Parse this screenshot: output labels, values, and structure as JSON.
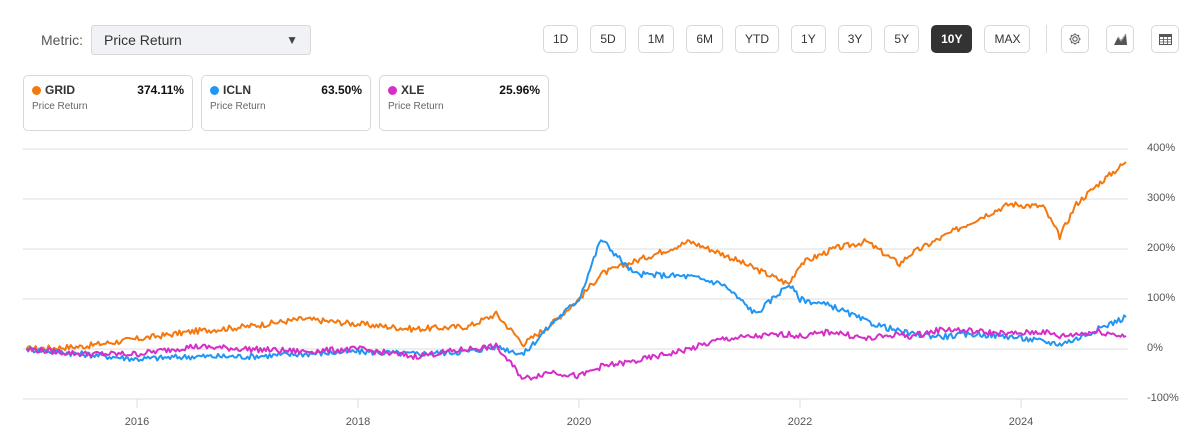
{
  "controls": {
    "metric_label": "Metric:",
    "metric_value": "Price Return",
    "ranges": [
      "1D",
      "5D",
      "1M",
      "6M",
      "YTD",
      "1Y",
      "3Y",
      "5Y",
      "10Y",
      "MAX"
    ],
    "active_range": "10Y",
    "icons": [
      "gear-icon",
      "chart-type-icon",
      "table-icon"
    ]
  },
  "cards": [
    {
      "symbol": "GRID",
      "value": "374.11%",
      "label": "Price Return",
      "color": "#f5780f"
    },
    {
      "symbol": "ICLN",
      "value": "63.50%",
      "label": "Price Return",
      "color": "#2196f3"
    },
    {
      "symbol": "XLE",
      "value": "25.96%",
      "label": "Price Return",
      "color": "#d42fc8"
    }
  ],
  "chart_data": {
    "type": "line",
    "title": "",
    "xlabel": "",
    "ylabel": "Price Return",
    "ylim": [
      -100,
      400
    ],
    "yticks": [
      "400%",
      "300%",
      "200%",
      "100%",
      "0%",
      "-100%"
    ],
    "xticks": [
      "2016",
      "2018",
      "2020",
      "2022",
      "2024"
    ],
    "grid": true,
    "legend_position": "top (cards)",
    "x": [
      2015.0,
      2015.5,
      2016.0,
      2016.5,
      2017.0,
      2017.5,
      2018.0,
      2018.5,
      2019.0,
      2019.25,
      2019.5,
      2019.75,
      2020.0,
      2020.2,
      2020.5,
      2021.0,
      2021.3,
      2021.6,
      2021.9,
      2022.0,
      2022.3,
      2022.6,
      2022.9,
      2023.0,
      2023.3,
      2023.6,
      2023.9,
      2024.2,
      2024.35,
      2024.5,
      2024.7,
      2024.95
    ],
    "series": [
      {
        "name": "GRID",
        "color": "#f5780f",
        "values": [
          0,
          5,
          20,
          35,
          45,
          60,
          50,
          40,
          45,
          70,
          10,
          50,
          100,
          150,
          175,
          215,
          190,
          160,
          130,
          170,
          200,
          215,
          170,
          190,
          225,
          260,
          290,
          285,
          225,
          290,
          330,
          374
        ]
      },
      {
        "name": "ICLN",
        "color": "#2196f3",
        "values": [
          0,
          -10,
          -20,
          -15,
          -15,
          -10,
          -5,
          -10,
          -5,
          5,
          -10,
          50,
          100,
          220,
          150,
          145,
          130,
          70,
          130,
          100,
          85,
          55,
          35,
          30,
          25,
          30,
          25,
          15,
          10,
          20,
          40,
          64
        ]
      },
      {
        "name": "XLE",
        "color": "#d42fc8",
        "values": [
          0,
          -10,
          -10,
          5,
          0,
          -5,
          0,
          -15,
          0,
          5,
          -60,
          -45,
          -55,
          -35,
          -25,
          0,
          20,
          25,
          30,
          25,
          35,
          20,
          30,
          25,
          40,
          35,
          30,
          35,
          25,
          30,
          35,
          26
        ]
      }
    ]
  }
}
